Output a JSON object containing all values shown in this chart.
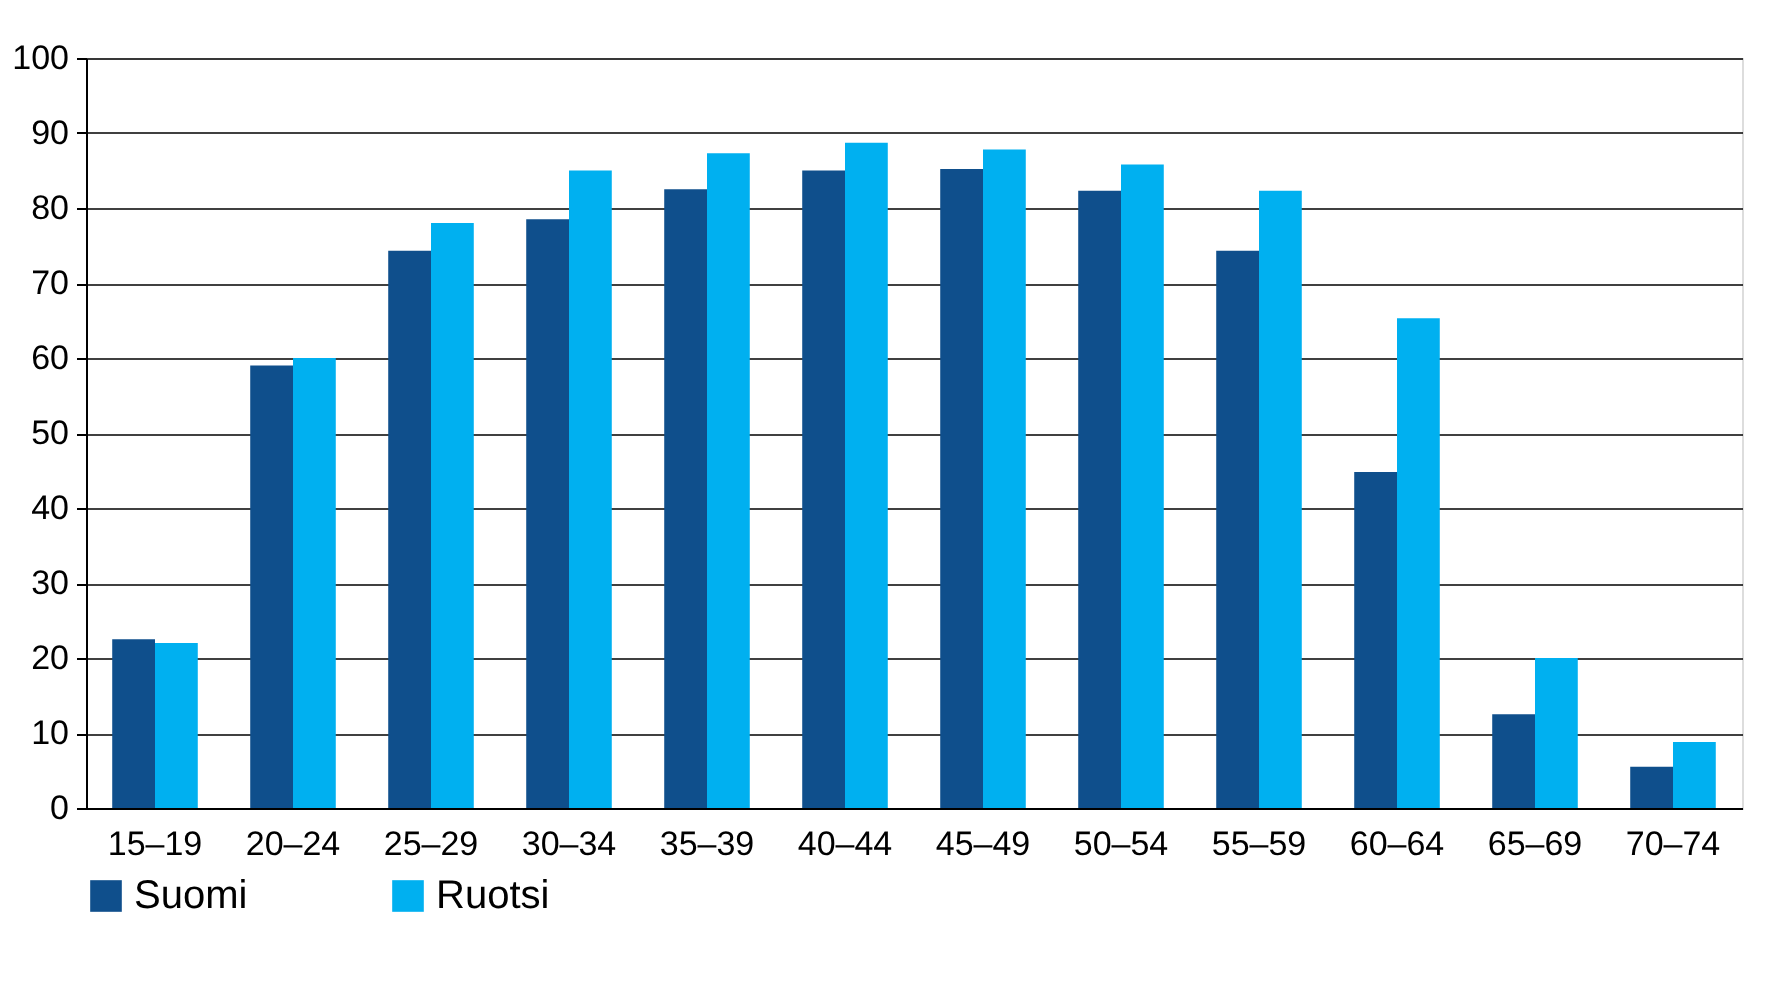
{
  "chart_data": {
    "type": "bar",
    "categories": [
      "15–19",
      "20–24",
      "25–29",
      "30–34",
      "35–39",
      "40–44",
      "45–49",
      "50–54",
      "55–59",
      "60–64",
      "65–69",
      "70–74"
    ],
    "series": [
      {
        "name": "Suomi",
        "color": "#0f4f8c",
        "values": [
          22.5,
          59,
          74.3,
          78.5,
          82.5,
          85,
          85.2,
          82.3,
          74.3,
          44.8,
          12.5,
          5.5
        ]
      },
      {
        "name": "Ruotsi",
        "color": "#00b0f0",
        "values": [
          22,
          60,
          78,
          85,
          87.3,
          88.7,
          87.8,
          85.8,
          82.3,
          65.3,
          20,
          8.8
        ]
      }
    ],
    "ylim": [
      0,
      100
    ],
    "yticks": [
      0,
      10,
      20,
      30,
      40,
      50,
      60,
      70,
      80,
      90,
      100
    ],
    "grid": "y",
    "legend": "bottom left"
  }
}
